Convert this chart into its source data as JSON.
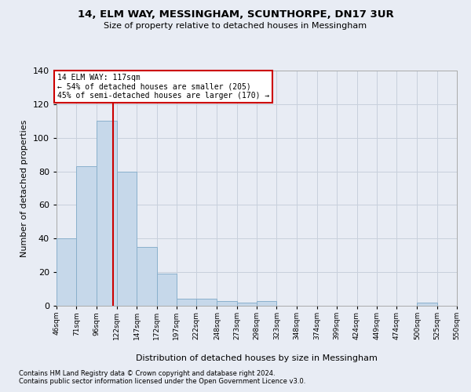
{
  "title_line1": "14, ELM WAY, MESSINGHAM, SCUNTHORPE, DN17 3UR",
  "title_line2": "Size of property relative to detached houses in Messingham",
  "xlabel": "Distribution of detached houses by size in Messingham",
  "ylabel": "Number of detached properties",
  "footnote_line1": "Contains HM Land Registry data © Crown copyright and database right 2024.",
  "footnote_line2": "Contains public sector information licensed under the Open Government Licence v3.0.",
  "bin_edges": [
    46,
    71,
    96,
    122,
    147,
    172,
    197,
    222,
    248,
    273,
    298,
    323,
    348,
    374,
    399,
    424,
    449,
    474,
    500,
    525,
    550
  ],
  "bar_heights": [
    40,
    83,
    110,
    80,
    35,
    19,
    4,
    4,
    3,
    2,
    3,
    0,
    0,
    0,
    0,
    0,
    0,
    0,
    2,
    0
  ],
  "bar_color": "#c6d8ea",
  "bar_edge_color": "#8ab0cc",
  "grid_color": "#c8d0dc",
  "property_line_x": 117,
  "property_line_color": "#cc0000",
  "annotation_text_line1": "14 ELM WAY: 117sqm",
  "annotation_text_line2": "← 54% of detached houses are smaller (205)",
  "annotation_text_line3": "45% of semi-detached houses are larger (170) →",
  "annotation_box_facecolor": "#ffffff",
  "annotation_box_edgecolor": "#cc0000",
  "xlim_left": 46,
  "xlim_right": 550,
  "ylim_top": 140,
  "ylim_bottom": 0,
  "yticks": [
    0,
    20,
    40,
    60,
    80,
    100,
    120,
    140
  ],
  "background_color": "#e8ecf4"
}
